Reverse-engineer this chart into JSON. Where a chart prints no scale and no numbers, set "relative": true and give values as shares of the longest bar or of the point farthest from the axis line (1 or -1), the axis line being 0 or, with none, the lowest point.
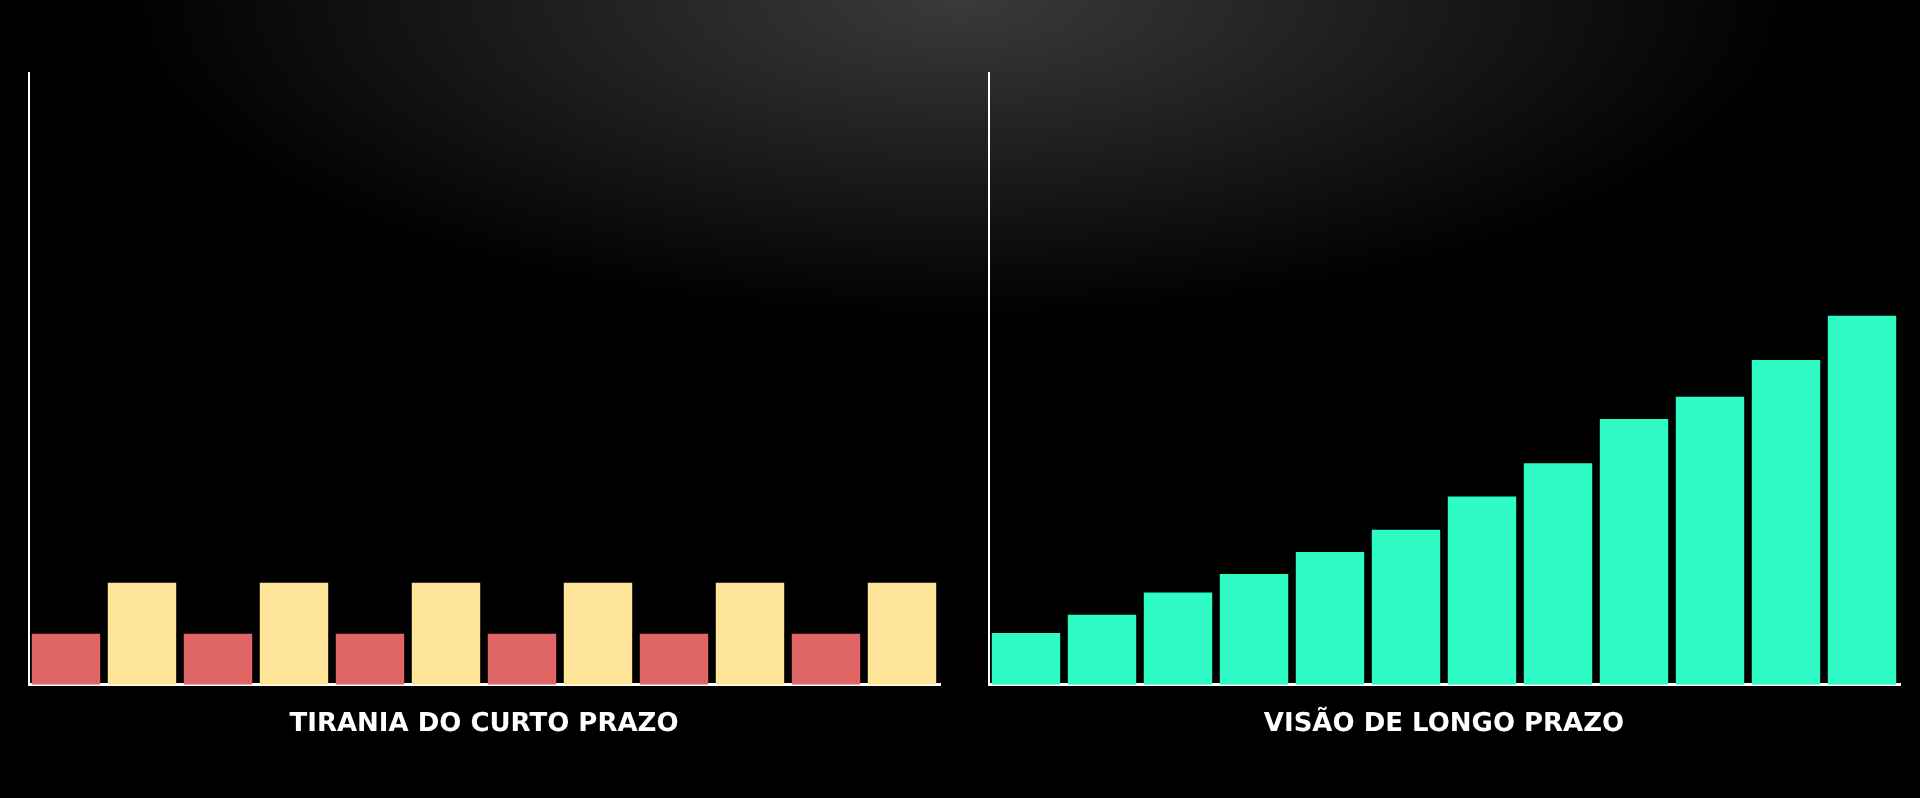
{
  "chart_data": [
    {
      "type": "bar",
      "title": "TIRANIA DO CURTO PRAZO",
      "relative": true,
      "categories": [
        null,
        null,
        null,
        null,
        null,
        null,
        null,
        null,
        null,
        null,
        null,
        null
      ],
      "values": [
        0.5,
        1,
        0.5,
        1,
        0.5,
        1,
        0.5,
        1,
        0.5,
        1,
        0.5,
        1
      ],
      "colors": [
        "#e06666",
        "#ffe599",
        "#e06666",
        "#ffe599",
        "#e06666",
        "#ffe599",
        "#e06666",
        "#ffe599",
        "#e06666",
        "#ffe599",
        "#e06666",
        "#ffe599"
      ]
    },
    {
      "type": "bar",
      "title": "VISÃO DE LONGO PRAZO",
      "relative": true,
      "categories": [
        null,
        null,
        null,
        null,
        null,
        null,
        null,
        null,
        null,
        null,
        null,
        null
      ],
      "values": [
        0.14,
        0.19,
        0.25,
        0.3,
        0.36,
        0.42,
        0.51,
        0.6,
        0.72,
        0.78,
        0.88,
        1
      ],
      "color": "#2ffcc5"
    }
  ]
}
